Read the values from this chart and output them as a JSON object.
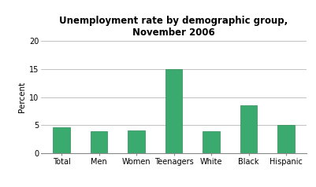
{
  "categories": [
    "Total",
    "Men",
    "Women",
    "Teenagers",
    "White",
    "Black",
    "Hispanic"
  ],
  "values": [
    4.7,
    4.0,
    4.1,
    15.0,
    4.0,
    8.5,
    5.0
  ],
  "bar_color": "#3aaa6e",
  "bar_edge_color": "#2a8a55",
  "title_line1": "Unemployment rate by demographic group,",
  "title_line2": "November 2006",
  "ylabel": "Percent",
  "ylim": [
    0,
    20
  ],
  "yticks": [
    0,
    5,
    10,
    15,
    20
  ],
  "title_fontsize": 8.5,
  "axis_fontsize": 7.5,
  "tick_fontsize": 7,
  "background_color": "#ffffff",
  "grid_color": "#aaaaaa",
  "bar_width": 0.45
}
